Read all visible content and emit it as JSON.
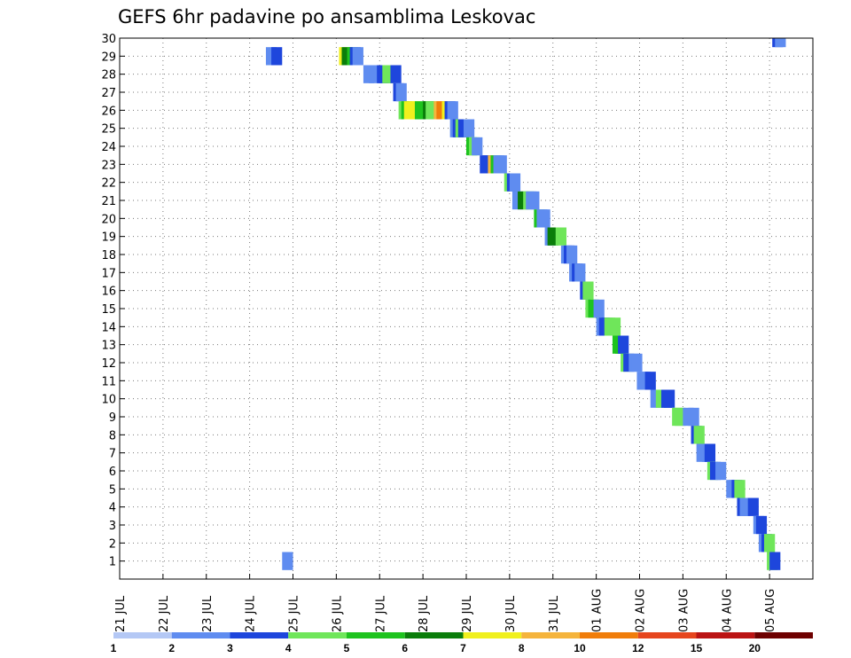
{
  "chart_data": {
    "type": "heatmap",
    "title": "GEFS 6hr padavine po ansamblima Leskovac",
    "y_ticks": [
      "1",
      "2",
      "3",
      "4",
      "5",
      "6",
      "7",
      "8",
      "9",
      "10",
      "11",
      "12",
      "13",
      "14",
      "15",
      "16",
      "17",
      "18",
      "19",
      "20",
      "21",
      "22",
      "23",
      "24",
      "25",
      "26",
      "27",
      "28",
      "29",
      "30"
    ],
    "x_ticks": [
      "21 JUL",
      "22 JUL",
      "23 JUL",
      "24 JUL",
      "25 JUL",
      "26 JUL",
      "27 JUL",
      "28 JUL",
      "29 JUL",
      "30 JUL",
      "31 JUL",
      "01 AUG",
      "02 AUG",
      "03 AUG",
      "04 AUG",
      "05 AUG"
    ],
    "x_steps_per_day": 4,
    "ylim": [
      0,
      30
    ],
    "grid": true,
    "legend": {
      "placement": "bottom",
      "labels": [
        "1",
        "2",
        "3",
        "4",
        "5",
        "6",
        "7",
        "8",
        "10",
        "12",
        "15",
        "20"
      ],
      "colors": [
        "#b4c8f5",
        "#5f8cf0",
        "#1e46dc",
        "#6fe65a",
        "#1ec31e",
        "#0a7d0a",
        "#f0f01e",
        "#f5b43c",
        "#f07d0a",
        "#e6461e",
        "#bb1414",
        "#6e0000"
      ]
    },
    "cells": [
      [
        29,
        13.5,
        1
      ],
      [
        29,
        14,
        2
      ],
      [
        29,
        20.25,
        6
      ],
      [
        29,
        20.5,
        5
      ],
      [
        29,
        21,
        4
      ],
      [
        29,
        21.25,
        2
      ],
      [
        29,
        21.5,
        1
      ],
      [
        1,
        15,
        1
      ],
      [
        28,
        22.5,
        1
      ],
      [
        28,
        23,
        1
      ],
      [
        28,
        23.75,
        2
      ],
      [
        28,
        24,
        2
      ],
      [
        28,
        24.25,
        3
      ],
      [
        28,
        25,
        2
      ],
      [
        27,
        25.25,
        2
      ],
      [
        27,
        25.5,
        1
      ],
      [
        26,
        25.75,
        3
      ],
      [
        26,
        26,
        4
      ],
      [
        26,
        26.25,
        6
      ],
      [
        26,
        26.75,
        6
      ],
      [
        26,
        27.25,
        4
      ],
      [
        26,
        28,
        5
      ],
      [
        26,
        28.25,
        3
      ],
      [
        26,
        29,
        7
      ],
      [
        26,
        29.25,
        8
      ],
      [
        26,
        29.75,
        6
      ],
      [
        26,
        30,
        2
      ],
      [
        26,
        30.25,
        1
      ],
      [
        25,
        30.5,
        1
      ],
      [
        25,
        30.75,
        2
      ],
      [
        25,
        31,
        3
      ],
      [
        25,
        31.25,
        2
      ],
      [
        25,
        31.75,
        1
      ],
      [
        24,
        32,
        4
      ],
      [
        24,
        32.25,
        3
      ],
      [
        24,
        32.5,
        1
      ],
      [
        23,
        33.25,
        2
      ],
      [
        23,
        33.5,
        2
      ],
      [
        23,
        34,
        7
      ],
      [
        23,
        34.25,
        4
      ],
      [
        23,
        34.5,
        1
      ],
      [
        23,
        34.75,
        1
      ],
      [
        22,
        35.5,
        3
      ],
      [
        22,
        35.75,
        2
      ],
      [
        22,
        36,
        1
      ],
      [
        21,
        36.25,
        1
      ],
      [
        21,
        36.75,
        5
      ],
      [
        21,
        37.25,
        3
      ],
      [
        21,
        37.5,
        1
      ],
      [
        21,
        37.75,
        1
      ],
      [
        20,
        38.25,
        4
      ],
      [
        20,
        38.5,
        1
      ],
      [
        20,
        38.75,
        1
      ],
      [
        19,
        39.25,
        1
      ],
      [
        19,
        39.5,
        5
      ],
      [
        19,
        40.25,
        3
      ],
      [
        18,
        40.75,
        1
      ],
      [
        18,
        41,
        2
      ],
      [
        18,
        41.25,
        1
      ],
      [
        17,
        41.5,
        1
      ],
      [
        17,
        41.75,
        2
      ],
      [
        17,
        42,
        1
      ],
      [
        16,
        42.5,
        2
      ],
      [
        16,
        42.75,
        3
      ],
      [
        15,
        43,
        3
      ],
      [
        15,
        43.25,
        4
      ],
      [
        15,
        43.75,
        1
      ],
      [
        14,
        44,
        1
      ],
      [
        14,
        44.25,
        2
      ],
      [
        14,
        44.5,
        2
      ],
      [
        14,
        44.75,
        3
      ],
      [
        14,
        45.25,
        3
      ],
      [
        13,
        45.5,
        4
      ],
      [
        13,
        45.75,
        4
      ],
      [
        13,
        46,
        2
      ],
      [
        12,
        46.25,
        3
      ],
      [
        12,
        46.5,
        2
      ],
      [
        12,
        47,
        1
      ],
      [
        12,
        47.25,
        1
      ],
      [
        11,
        47.75,
        1
      ],
      [
        11,
        48,
        1
      ],
      [
        11,
        48.5,
        2
      ],
      [
        10,
        49,
        1
      ],
      [
        10,
        49.5,
        3
      ],
      [
        10,
        50,
        2
      ],
      [
        10,
        50.25,
        2
      ],
      [
        9,
        51,
        3
      ],
      [
        9,
        51.25,
        3
      ],
      [
        9,
        52,
        1
      ],
      [
        9,
        52.5,
        1
      ],
      [
        8,
        52.75,
        2
      ],
      [
        8,
        53,
        3
      ],
      [
        7,
        53.25,
        1
      ],
      [
        7,
        53.75,
        1
      ],
      [
        7,
        54,
        2
      ],
      [
        6,
        54.25,
        3
      ],
      [
        6,
        54.5,
        2
      ],
      [
        6,
        55,
        1
      ],
      [
        5,
        56,
        1
      ],
      [
        5,
        56.25,
        1
      ],
      [
        5,
        56.5,
        2
      ],
      [
        5,
        56.75,
        3
      ],
      [
        4,
        57,
        2
      ],
      [
        4,
        57.25,
        1
      ],
      [
        4,
        57.75,
        1
      ],
      [
        4,
        58,
        2
      ],
      [
        3,
        58.5,
        1
      ],
      [
        3,
        58.75,
        2
      ],
      [
        2,
        59,
        1
      ],
      [
        2,
        59.25,
        2
      ],
      [
        2,
        59.5,
        3
      ],
      [
        1,
        59.75,
        3
      ],
      [
        1,
        60,
        2
      ],
      [
        30,
        60.25,
        2
      ],
      [
        30,
        60.5,
        1
      ]
    ]
  }
}
